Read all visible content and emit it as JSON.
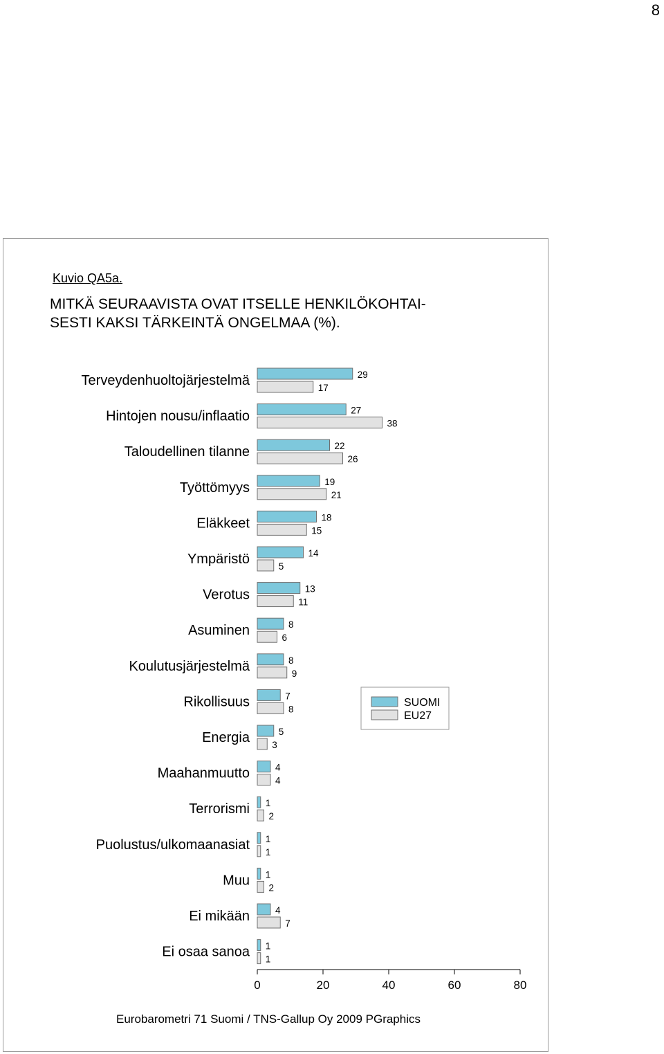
{
  "page_number": "8",
  "figure_label": "Kuvio QA5a.",
  "title_lines": [
    "MITKÄ SEURAAVISTA OVAT ITSELLE HENKILÖKOHTAI-",
    "SESTI KAKSI TÄRKEINTÄ ONGELMAA (%)."
  ],
  "source_note": "Eurobarometri 71 Suomi / TNS-Gallup Oy 2009  PGraphics",
  "colors": {
    "suomi": "#7ec8dc",
    "eu27": "#e2e2e2",
    "bar_outline": "#707070"
  },
  "chart_data": {
    "type": "bar",
    "orientation": "horizontal",
    "title": "MITKÄ SEURAAVISTA OVAT ITSELLE HENKILÖKOHTAISESTI KAKSI TÄRKEINTÄ ONGELMAA (%).",
    "categories": [
      "Terveydenhuoltojärjestelmä",
      "Hintojen nousu/inflaatio",
      "Taloudellinen tilanne",
      "Työttömyys",
      "Eläkkeet",
      "Ympäristö",
      "Verotus",
      "Asuminen",
      "Koulutusjärjestelmä",
      "Rikollisuus",
      "Energia",
      "Maahanmuutto",
      "Terrorismi",
      "Puolustus/ulkomaanasiat",
      "Muu",
      "Ei mikään",
      "Ei osaa sanoa"
    ],
    "series": [
      {
        "name": "SUOMI",
        "values": [
          29,
          27,
          22,
          19,
          18,
          14,
          13,
          8,
          8,
          7,
          5,
          4,
          1,
          1,
          1,
          4,
          1
        ]
      },
      {
        "name": "EU27",
        "values": [
          17,
          38,
          26,
          21,
          15,
          5,
          11,
          6,
          9,
          8,
          3,
          4,
          2,
          1,
          2,
          7,
          1
        ]
      }
    ],
    "xlim": [
      0,
      80
    ],
    "xticks": [
      "0",
      "20",
      "40",
      "60",
      "80"
    ],
    "xlabel": "",
    "ylabel": "",
    "grid": false,
    "legend_position": "right"
  }
}
